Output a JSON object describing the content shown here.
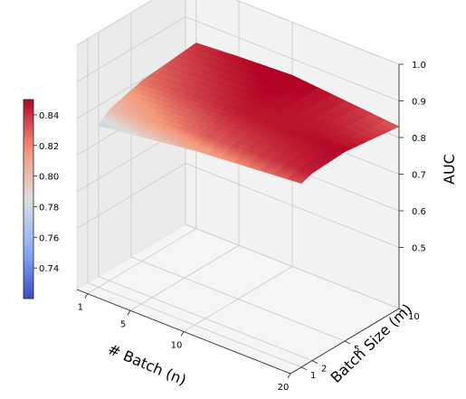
{
  "chart_data": {
    "type": "surface3d",
    "xlabel": "# Batch (n)",
    "ylabel": "Batch Size (m)",
    "zlabel": "AUC",
    "x": [
      1,
      5,
      10,
      20
    ],
    "y": [
      1,
      2,
      5,
      10
    ],
    "xticks": [
      "1",
      "5",
      "10",
      "20"
    ],
    "yticks": [
      "1",
      "2",
      "5",
      "10"
    ],
    "zticks": [
      "0.5",
      "0.6",
      "0.7",
      "0.8",
      "0.9",
      "1.0"
    ],
    "zlim": [
      0.5,
      1.0
    ],
    "z": [
      [
        0.775,
        0.79,
        0.81,
        0.835
      ],
      [
        0.8,
        0.815,
        0.83,
        0.845
      ],
      [
        0.825,
        0.835,
        0.845,
        0.85
      ],
      [
        0.84,
        0.848,
        0.855,
        0.83
      ]
    ],
    "colorbar": {
      "ticks": [
        "0.74",
        "0.76",
        "0.78",
        "0.80",
        "0.82",
        "0.84"
      ],
      "range": [
        0.72,
        0.85
      ],
      "colormap": "coolwarm",
      "low_color": "#3b4cc0",
      "mid_color": "#dddddd",
      "high_color": "#b40426"
    },
    "grid": true
  }
}
